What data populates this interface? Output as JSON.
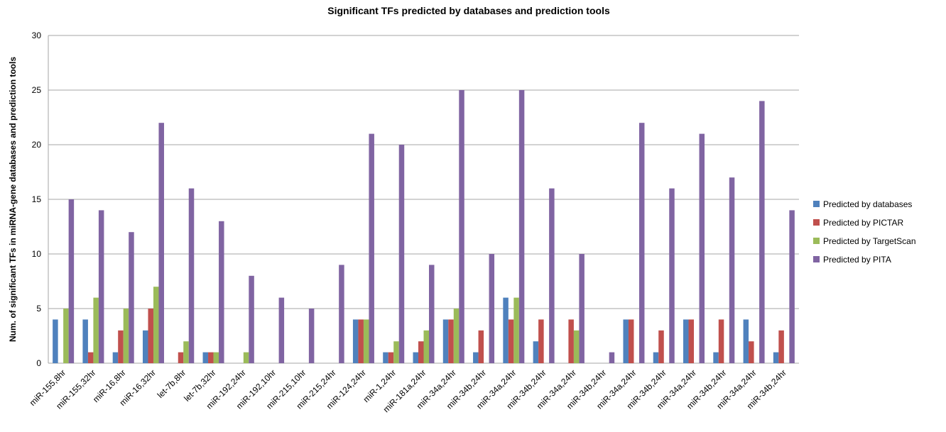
{
  "chart_data": {
    "type": "bar",
    "title": "Significant TFs predicted by databases and prediction tools",
    "y_label": "Num. of significant TFs in miRNA-gene databases and prediction tools",
    "categories": [
      "miR-155,8hr",
      "miR-155,32hr",
      "miR-16,8hr",
      "miR-16,32hr",
      "let-7b,8hr",
      "let-7b,32hr",
      "miR-192,24hr",
      "miR-192,10hr",
      "miR-215,10hr",
      "miR-215,24hr",
      "miR-124,24hr",
      "miR-1,24hr",
      "miR-181a,24hr",
      "miR-34a,24hr",
      "miR-34b,24hr",
      "miR-34a,24hr",
      "miR-34b,24hr",
      "miR-34a,24hr",
      "miR-34b,24hr",
      "miR-34a,24hr",
      "miR-34b,24hr",
      "miR-34a,24hr",
      "miR-34b,24hr",
      "miR-34a,24hr",
      "miR-34b,24hr"
    ],
    "series": [
      {
        "name": "Predicted by databases",
        "color": "#4f81bd",
        "values": [
          4,
          4,
          1,
          3,
          0,
          1,
          0,
          0,
          0,
          0,
          4,
          1,
          1,
          4,
          1,
          6,
          2,
          0,
          0,
          4,
          1,
          4,
          1,
          4,
          1
        ]
      },
      {
        "name": "Predicted by PICTAR",
        "color": "#c0504d",
        "values": [
          0,
          1,
          3,
          5,
          1,
          1,
          0,
          0,
          0,
          0,
          4,
          1,
          2,
          4,
          3,
          4,
          4,
          4,
          0,
          4,
          3,
          4,
          4,
          2,
          3
        ]
      },
      {
        "name": "Predicted by TargetScan",
        "color": "#9bbb59",
        "values": [
          5,
          6,
          5,
          7,
          2,
          1,
          1,
          0,
          0,
          0,
          4,
          2,
          3,
          5,
          0,
          6,
          0,
          3,
          0,
          0,
          0,
          0,
          0,
          0,
          0
        ]
      },
      {
        "name": "Predicted by PITA",
        "color": "#8064a2",
        "values": [
          15,
          14,
          12,
          22,
          16,
          13,
          8,
          6,
          5,
          9,
          21,
          20,
          9,
          25,
          10,
          25,
          16,
          10,
          1,
          22,
          16,
          21,
          17,
          24,
          14
        ]
      }
    ],
    "ylim": [
      0,
      30
    ],
    "yticks": [
      0,
      5,
      10,
      15,
      20,
      25,
      30
    ],
    "grid": true,
    "legend": "right"
  }
}
